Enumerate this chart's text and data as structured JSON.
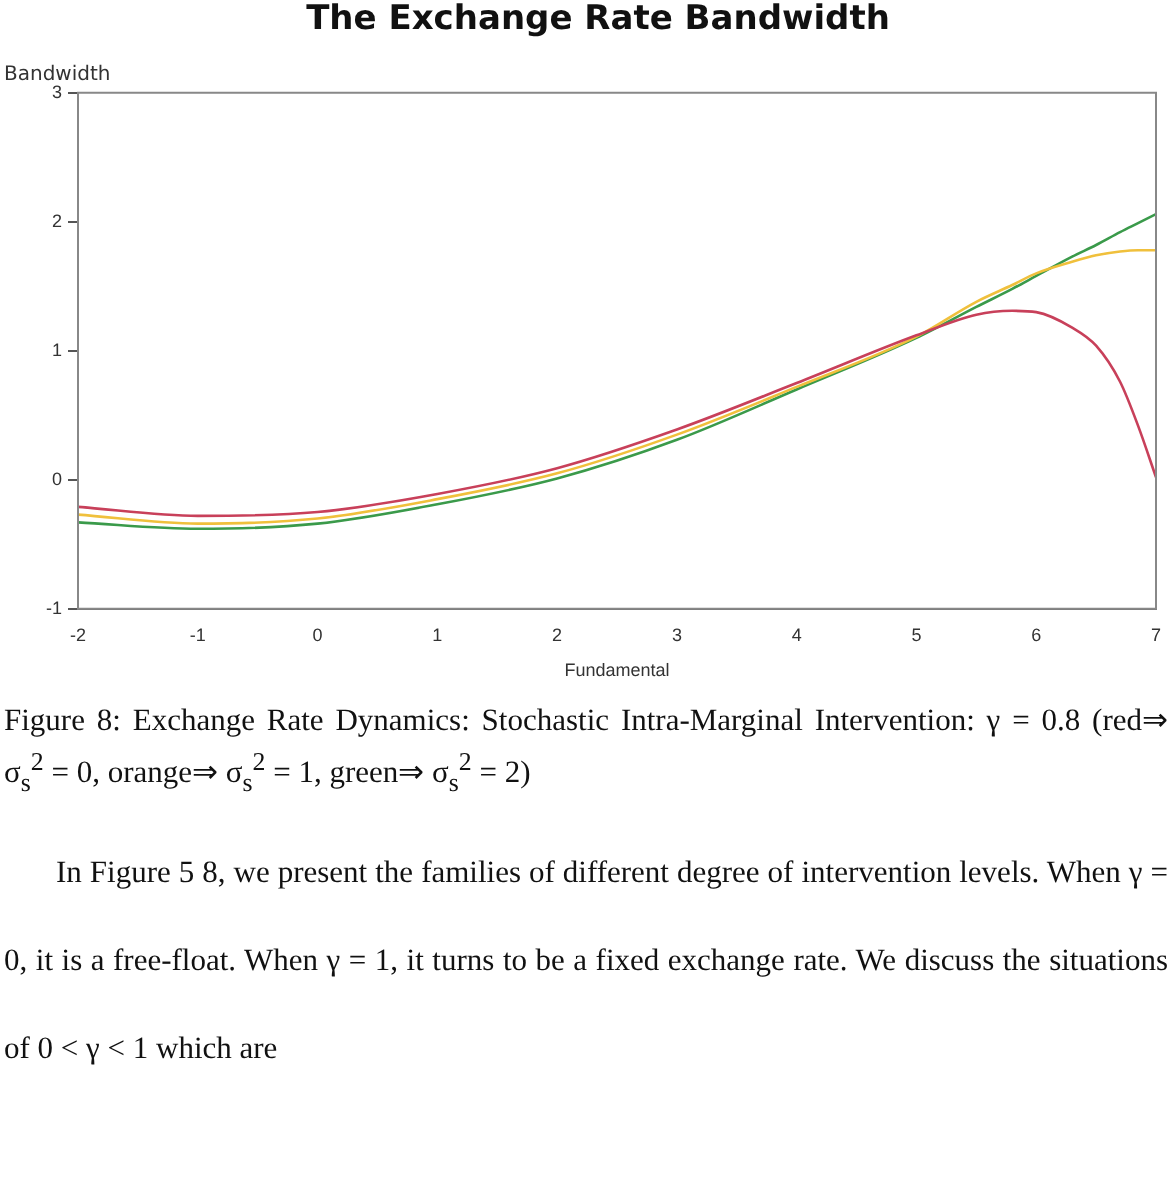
{
  "chart_data": {
    "type": "line",
    "title": "The Exchange Rate Bandwidth",
    "xlabel": "Fundamental",
    "ylabel": "Bandwidth",
    "x": [
      -2,
      -1,
      0,
      1,
      2,
      3,
      4,
      5,
      5.5,
      5.8,
      6,
      6.3,
      6.5,
      6.7,
      6.85,
      7
    ],
    "series": [
      {
        "color": "#c8405a",
        "values": [
          -0.21,
          -0.28,
          -0.25,
          -0.11,
          0.09,
          0.39,
          0.75,
          1.12,
          1.28,
          1.31,
          1.3,
          1.18,
          1.04,
          0.76,
          0.42,
          0.02
        ]
      },
      {
        "color": "#f0c03c",
        "values": [
          -0.27,
          -0.34,
          -0.3,
          -0.15,
          0.05,
          0.35,
          0.72,
          1.11,
          1.38,
          1.51,
          1.6,
          1.69,
          1.74,
          1.77,
          1.78,
          1.78
        ]
      },
      {
        "color": "#3a9a4a",
        "values": [
          -0.33,
          -0.38,
          -0.34,
          -0.19,
          0.01,
          0.31,
          0.7,
          1.1,
          1.34,
          1.48,
          1.58,
          1.73,
          1.82,
          1.92,
          1.99,
          2.06
        ]
      }
    ],
    "xlim": [
      -2,
      7
    ],
    "xticks": [
      -2,
      -1,
      0,
      1,
      2,
      3,
      4,
      5,
      6,
      7
    ],
    "ylim": [
      -1,
      3
    ],
    "yticks": [
      -1,
      0,
      1,
      2,
      3
    ],
    "grid": false,
    "legend": false,
    "marker": "none",
    "line_style": "solid",
    "annotations": [
      "Figure 8: Exchange Rate Dynamics: Stochastic Intra-Marginal Intervention: γ = 0.8 (red⇒ σ$_{s}$$^{2}$ = 0, orange⇒ σ$_{s}$$^{2}$ = 1, green⇒ σ$_{s}$$^{2}$ = 2)",
      "In Figure 5 8, we present the families of different degree of intervention levels. When γ = 0, it is a free-float. When γ = 1, it turns to be a fixed exchange rate. We discuss the situations of 0 < γ < 1 which are"
    ]
  }
}
